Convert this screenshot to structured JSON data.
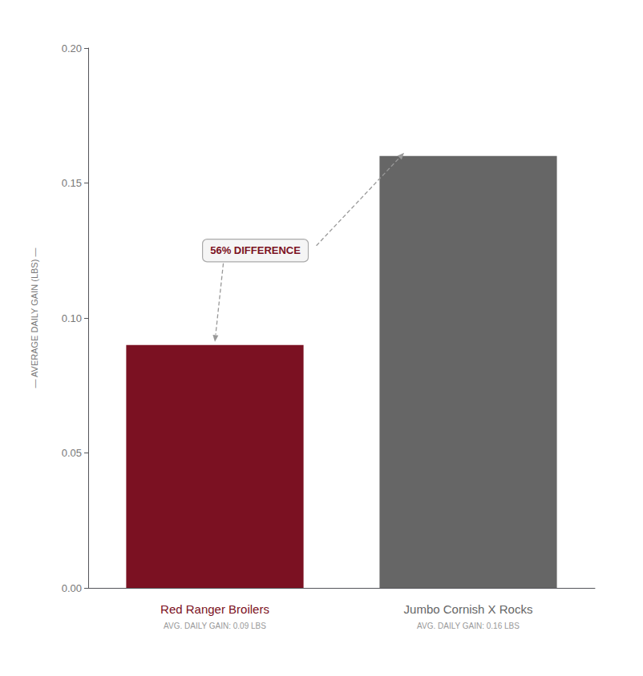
{
  "chart_data": {
    "type": "bar",
    "categories": [
      "Red Ranger Broilers",
      "Jumbo Cornish X Rocks"
    ],
    "category_sublabels": [
      "AVG. DAILY GAIN: 0.09 LBS",
      "AVG. DAILY GAIN: 0.16 LBS"
    ],
    "values": [
      0.09,
      0.16
    ],
    "colors": [
      "#7B1122",
      "#666666"
    ],
    "ylabel": "— AVERAGE DAILY GAIN (LBS) —",
    "annotation": "56% DIFFERENCE",
    "ylim": [
      0,
      0.2
    ],
    "yticks": [
      {
        "value": 0,
        "label": "0.00"
      },
      0.05,
      {
        "value": 0.1,
        "label": "0.10"
      },
      0.15,
      {
        "value": 0.2,
        "label": "0.20"
      }
    ],
    "grid": false
  }
}
